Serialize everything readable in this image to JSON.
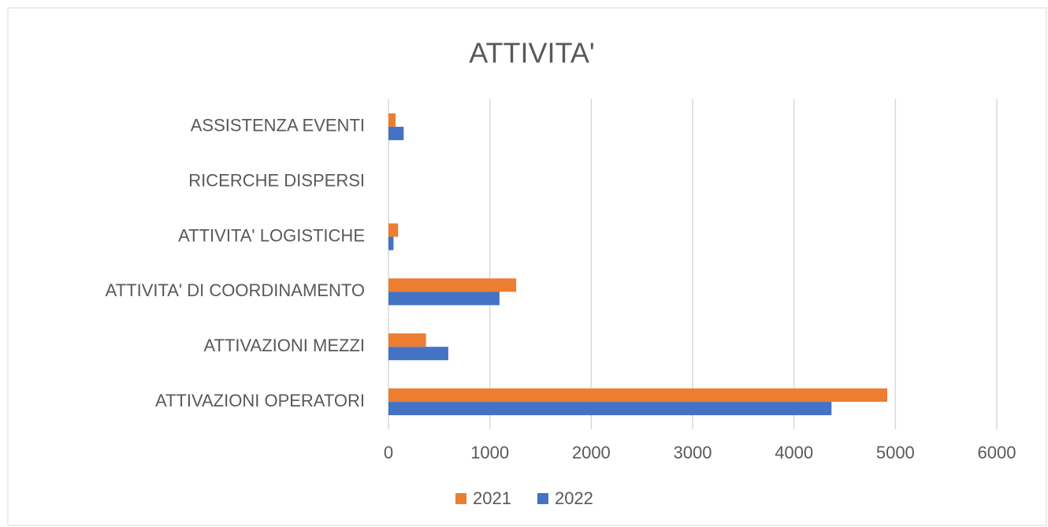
{
  "chart_data": {
    "type": "hbar",
    "title": "ATTIVITA'",
    "categories": [
      "ASSISTENZA EVENTI",
      "RICERCHE DISPERSI",
      "ATTIVITA' LOGISTICHE",
      "ATTIVITA' DI COORDINAMENTO",
      "ATTIVAZIONI MEZZI",
      "ATTIVAZIONI OPERATORI"
    ],
    "series": [
      {
        "name": "2021",
        "color": "#ed7d31",
        "values": [
          70,
          0,
          95,
          1260,
          370,
          4920
        ]
      },
      {
        "name": "2022",
        "color": "#4472c4",
        "values": [
          150,
          0,
          50,
          1095,
          590,
          4370
        ]
      }
    ],
    "xlim": [
      0,
      6000
    ],
    "xticks": [
      0,
      1000,
      2000,
      3000,
      4000,
      5000,
      6000
    ],
    "grid": true,
    "legend": "bottom"
  }
}
